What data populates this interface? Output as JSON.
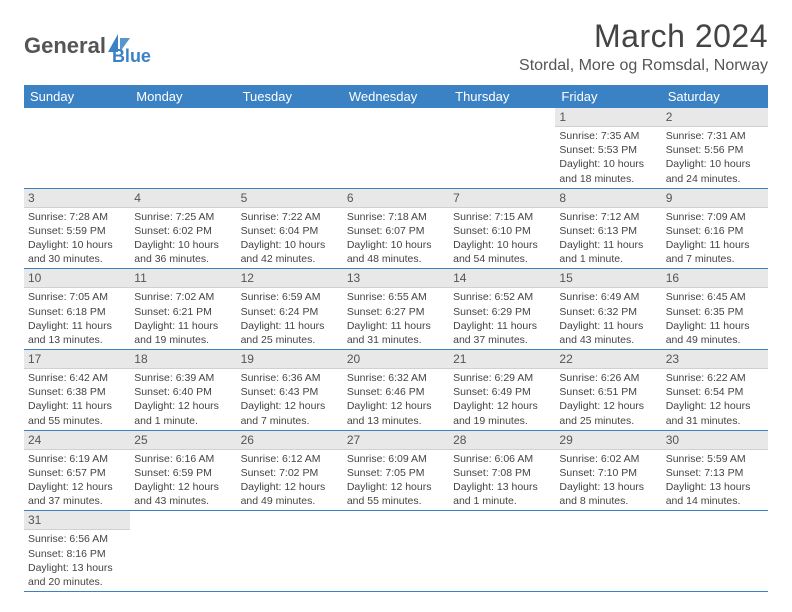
{
  "logo": {
    "part1": "General",
    "part2": "Blue",
    "accent": "#3b82c4",
    "text_color": "#555"
  },
  "title": "March 2024",
  "location": "Stordal, More og Romsdal, Norway",
  "weekdays": [
    "Sunday",
    "Monday",
    "Tuesday",
    "Wednesday",
    "Thursday",
    "Friday",
    "Saturday"
  ],
  "header_bg": "#3b82c4",
  "grid_border": "#3b82c4",
  "daynum_bg": "#e8e8e8",
  "weeks": [
    [
      null,
      null,
      null,
      null,
      null,
      {
        "n": "1",
        "sunrise": "Sunrise: 7:35 AM",
        "sunset": "Sunset: 5:53 PM",
        "daylight": "Daylight: 10 hours and 18 minutes."
      },
      {
        "n": "2",
        "sunrise": "Sunrise: 7:31 AM",
        "sunset": "Sunset: 5:56 PM",
        "daylight": "Daylight: 10 hours and 24 minutes."
      }
    ],
    [
      {
        "n": "3",
        "sunrise": "Sunrise: 7:28 AM",
        "sunset": "Sunset: 5:59 PM",
        "daylight": "Daylight: 10 hours and 30 minutes."
      },
      {
        "n": "4",
        "sunrise": "Sunrise: 7:25 AM",
        "sunset": "Sunset: 6:02 PM",
        "daylight": "Daylight: 10 hours and 36 minutes."
      },
      {
        "n": "5",
        "sunrise": "Sunrise: 7:22 AM",
        "sunset": "Sunset: 6:04 PM",
        "daylight": "Daylight: 10 hours and 42 minutes."
      },
      {
        "n": "6",
        "sunrise": "Sunrise: 7:18 AM",
        "sunset": "Sunset: 6:07 PM",
        "daylight": "Daylight: 10 hours and 48 minutes."
      },
      {
        "n": "7",
        "sunrise": "Sunrise: 7:15 AM",
        "sunset": "Sunset: 6:10 PM",
        "daylight": "Daylight: 10 hours and 54 minutes."
      },
      {
        "n": "8",
        "sunrise": "Sunrise: 7:12 AM",
        "sunset": "Sunset: 6:13 PM",
        "daylight": "Daylight: 11 hours and 1 minute."
      },
      {
        "n": "9",
        "sunrise": "Sunrise: 7:09 AM",
        "sunset": "Sunset: 6:16 PM",
        "daylight": "Daylight: 11 hours and 7 minutes."
      }
    ],
    [
      {
        "n": "10",
        "sunrise": "Sunrise: 7:05 AM",
        "sunset": "Sunset: 6:18 PM",
        "daylight": "Daylight: 11 hours and 13 minutes."
      },
      {
        "n": "11",
        "sunrise": "Sunrise: 7:02 AM",
        "sunset": "Sunset: 6:21 PM",
        "daylight": "Daylight: 11 hours and 19 minutes."
      },
      {
        "n": "12",
        "sunrise": "Sunrise: 6:59 AM",
        "sunset": "Sunset: 6:24 PM",
        "daylight": "Daylight: 11 hours and 25 minutes."
      },
      {
        "n": "13",
        "sunrise": "Sunrise: 6:55 AM",
        "sunset": "Sunset: 6:27 PM",
        "daylight": "Daylight: 11 hours and 31 minutes."
      },
      {
        "n": "14",
        "sunrise": "Sunrise: 6:52 AM",
        "sunset": "Sunset: 6:29 PM",
        "daylight": "Daylight: 11 hours and 37 minutes."
      },
      {
        "n": "15",
        "sunrise": "Sunrise: 6:49 AM",
        "sunset": "Sunset: 6:32 PM",
        "daylight": "Daylight: 11 hours and 43 minutes."
      },
      {
        "n": "16",
        "sunrise": "Sunrise: 6:45 AM",
        "sunset": "Sunset: 6:35 PM",
        "daylight": "Daylight: 11 hours and 49 minutes."
      }
    ],
    [
      {
        "n": "17",
        "sunrise": "Sunrise: 6:42 AM",
        "sunset": "Sunset: 6:38 PM",
        "daylight": "Daylight: 11 hours and 55 minutes."
      },
      {
        "n": "18",
        "sunrise": "Sunrise: 6:39 AM",
        "sunset": "Sunset: 6:40 PM",
        "daylight": "Daylight: 12 hours and 1 minute."
      },
      {
        "n": "19",
        "sunrise": "Sunrise: 6:36 AM",
        "sunset": "Sunset: 6:43 PM",
        "daylight": "Daylight: 12 hours and 7 minutes."
      },
      {
        "n": "20",
        "sunrise": "Sunrise: 6:32 AM",
        "sunset": "Sunset: 6:46 PM",
        "daylight": "Daylight: 12 hours and 13 minutes."
      },
      {
        "n": "21",
        "sunrise": "Sunrise: 6:29 AM",
        "sunset": "Sunset: 6:49 PM",
        "daylight": "Daylight: 12 hours and 19 minutes."
      },
      {
        "n": "22",
        "sunrise": "Sunrise: 6:26 AM",
        "sunset": "Sunset: 6:51 PM",
        "daylight": "Daylight: 12 hours and 25 minutes."
      },
      {
        "n": "23",
        "sunrise": "Sunrise: 6:22 AM",
        "sunset": "Sunset: 6:54 PM",
        "daylight": "Daylight: 12 hours and 31 minutes."
      }
    ],
    [
      {
        "n": "24",
        "sunrise": "Sunrise: 6:19 AM",
        "sunset": "Sunset: 6:57 PM",
        "daylight": "Daylight: 12 hours and 37 minutes."
      },
      {
        "n": "25",
        "sunrise": "Sunrise: 6:16 AM",
        "sunset": "Sunset: 6:59 PM",
        "daylight": "Daylight: 12 hours and 43 minutes."
      },
      {
        "n": "26",
        "sunrise": "Sunrise: 6:12 AM",
        "sunset": "Sunset: 7:02 PM",
        "daylight": "Daylight: 12 hours and 49 minutes."
      },
      {
        "n": "27",
        "sunrise": "Sunrise: 6:09 AM",
        "sunset": "Sunset: 7:05 PM",
        "daylight": "Daylight: 12 hours and 55 minutes."
      },
      {
        "n": "28",
        "sunrise": "Sunrise: 6:06 AM",
        "sunset": "Sunset: 7:08 PM",
        "daylight": "Daylight: 13 hours and 1 minute."
      },
      {
        "n": "29",
        "sunrise": "Sunrise: 6:02 AM",
        "sunset": "Sunset: 7:10 PM",
        "daylight": "Daylight: 13 hours and 8 minutes."
      },
      {
        "n": "30",
        "sunrise": "Sunrise: 5:59 AM",
        "sunset": "Sunset: 7:13 PM",
        "daylight": "Daylight: 13 hours and 14 minutes."
      }
    ],
    [
      {
        "n": "31",
        "sunrise": "Sunrise: 6:56 AM",
        "sunset": "Sunset: 8:16 PM",
        "daylight": "Daylight: 13 hours and 20 minutes."
      },
      null,
      null,
      null,
      null,
      null,
      null
    ]
  ]
}
